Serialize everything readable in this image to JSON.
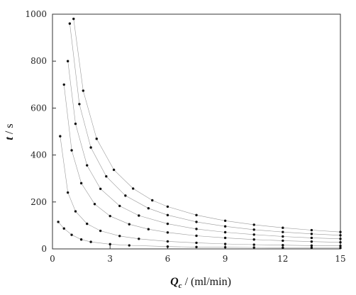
{
  "chart_data": {
    "type": "scatter",
    "title": "",
    "xlabel": {
      "symbol": "Q",
      "subscript": "c",
      "unit": " / (ml/min)"
    },
    "ylabel": {
      "symbol": "t",
      "unit": " / s"
    },
    "xlim": [
      0,
      15
    ],
    "ylim": [
      0,
      1000
    ],
    "x_ticks": [
      0,
      3,
      6,
      9,
      12,
      15
    ],
    "y_ticks": [
      0,
      200,
      400,
      600,
      800,
      1000
    ],
    "grid": false,
    "legend": "none",
    "series": [
      {
        "values_note": "",
        "points": [
          [
            0.3,
            115
          ],
          [
            0.6,
            87
          ],
          [
            1.0,
            60
          ],
          [
            1.5,
            40
          ],
          [
            2.0,
            30
          ],
          [
            3.0,
            20
          ],
          [
            4.0,
            15
          ],
          [
            6.0,
            10
          ],
          [
            7.5,
            8
          ],
          [
            9,
            7
          ],
          [
            10.5,
            6
          ],
          [
            12,
            5
          ],
          [
            13.5,
            5
          ],
          [
            15,
            4
          ]
        ]
      },
      {
        "points": [
          [
            0.4,
            480
          ],
          [
            0.8,
            240
          ],
          [
            1.2,
            160
          ],
          [
            1.8,
            107
          ],
          [
            2.5,
            77
          ],
          [
            3.5,
            55
          ],
          [
            4.5,
            43
          ],
          [
            6.0,
            32
          ],
          [
            7.5,
            26
          ],
          [
            9,
            21
          ],
          [
            10.5,
            18
          ],
          [
            12,
            16
          ],
          [
            13.5,
            14
          ],
          [
            15,
            13
          ]
        ]
      },
      {
        "points": [
          [
            0.6,
            700
          ],
          [
            1.0,
            420
          ],
          [
            1.5,
            280
          ],
          [
            2.2,
            191
          ],
          [
            3.0,
            140
          ],
          [
            4.0,
            105
          ],
          [
            5.0,
            84
          ],
          [
            6.0,
            70
          ],
          [
            7.5,
            56
          ],
          [
            9,
            47
          ],
          [
            10.5,
            40
          ],
          [
            12,
            35
          ],
          [
            13.5,
            31
          ],
          [
            15,
            28
          ]
        ]
      },
      {
        "points": [
          [
            0.8,
            800
          ],
          [
            1.2,
            533
          ],
          [
            1.8,
            356
          ],
          [
            2.5,
            256
          ],
          [
            3.5,
            183
          ],
          [
            4.5,
            142
          ],
          [
            6.0,
            107
          ],
          [
            7.5,
            85
          ],
          [
            9,
            71
          ],
          [
            10.5,
            61
          ],
          [
            12,
            53
          ],
          [
            13.5,
            47
          ],
          [
            15,
            43
          ]
        ]
      },
      {
        "points": [
          [
            0.9,
            960
          ],
          [
            1.4,
            617
          ],
          [
            2.0,
            432
          ],
          [
            2.8,
            309
          ],
          [
            3.8,
            227
          ],
          [
            5.0,
            173
          ],
          [
            6.0,
            144
          ],
          [
            7.5,
            115
          ],
          [
            9,
            96
          ],
          [
            10.5,
            82
          ],
          [
            12,
            72
          ],
          [
            13.5,
            64
          ],
          [
            15,
            58
          ]
        ]
      },
      {
        "points": [
          [
            1.1,
            980
          ],
          [
            1.6,
            674
          ],
          [
            2.3,
            469
          ],
          [
            3.2,
            337
          ],
          [
            4.2,
            257
          ],
          [
            5.2,
            207
          ],
          [
            6.0,
            180
          ],
          [
            7.5,
            144
          ],
          [
            9,
            120
          ],
          [
            10.5,
            103
          ],
          [
            12,
            90
          ],
          [
            13.5,
            80
          ],
          [
            15,
            72
          ]
        ]
      }
    ]
  }
}
